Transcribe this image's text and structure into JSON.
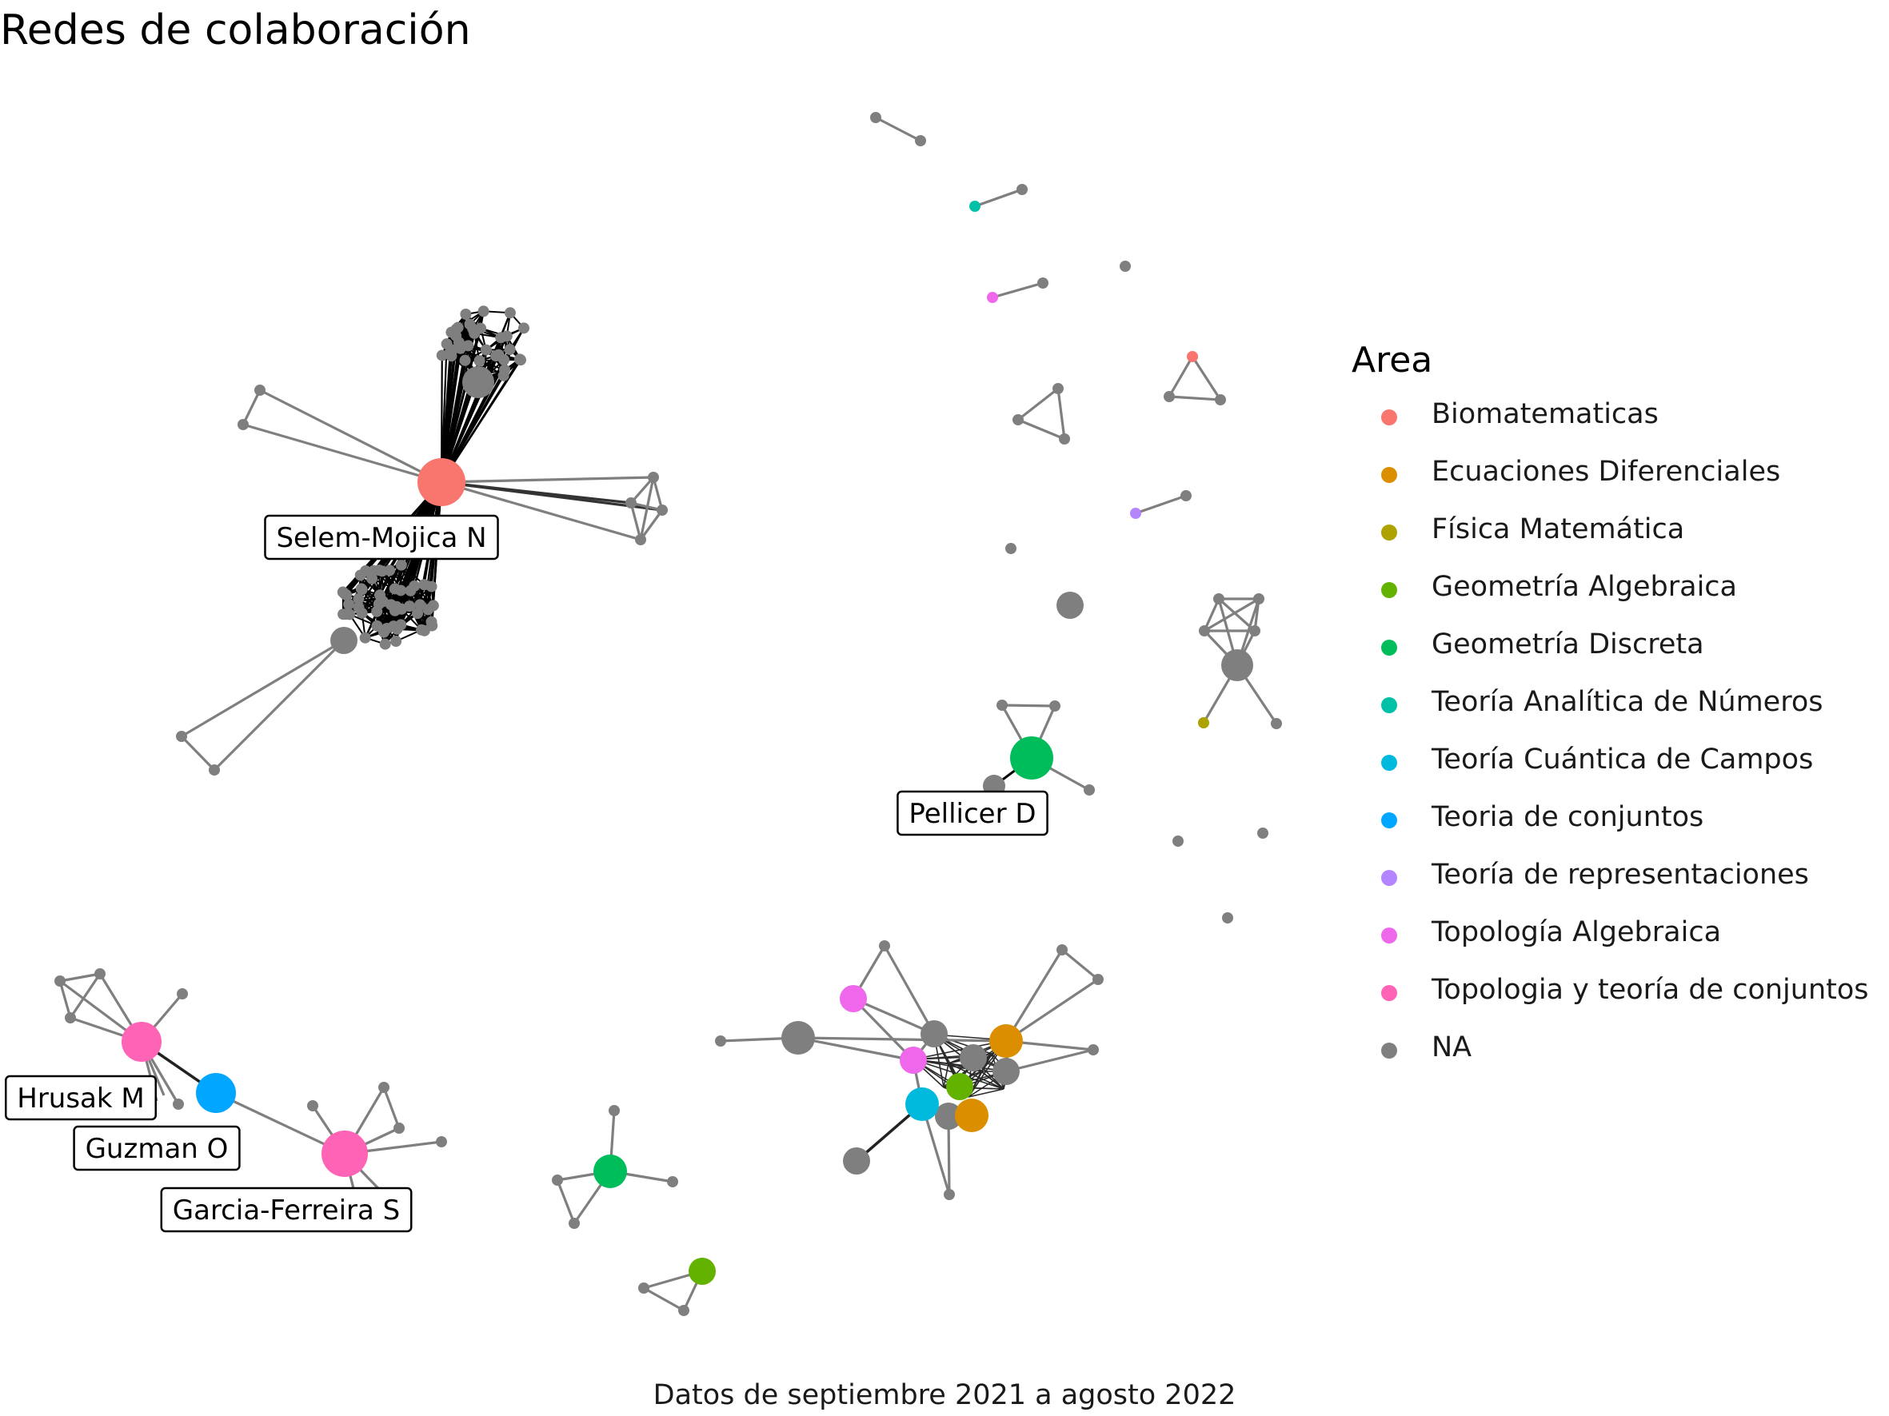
{
  "title": "Redes de colaboración",
  "caption": "Datos de septiembre 2021 a agosto 2022",
  "legend": {
    "title": "Area",
    "items": [
      {
        "label": "Biomatematicas",
        "color": "#F8766D"
      },
      {
        "label": "Ecuaciones Diferenciales",
        "color": "#DB8E00"
      },
      {
        "label": "Física Matemática",
        "color": "#AEA200"
      },
      {
        "label": "Geometría Algebraica",
        "color": "#64B200"
      },
      {
        "label": "Geometría Discreta",
        "color": "#00BD5C"
      },
      {
        "label": "Teoría Analítica de Números",
        "color": "#00C1A7"
      },
      {
        "label": "Teoría Cuántica de Campos",
        "color": "#00BADE"
      },
      {
        "label": "Teoria de conjuntos",
        "color": "#00A6FF"
      },
      {
        "label": "Teoría de representaciones",
        "color": "#B385FF"
      },
      {
        "label": "Topología Algebraica",
        "color": "#EF67EB"
      },
      {
        "label": "Topologia y teoría de conjuntos",
        "color": "#FF63B6"
      },
      {
        "label": "NA",
        "color": "#7F7F7F"
      }
    ]
  },
  "node_labels": {
    "selem": "Selem-Mojica N",
    "pellicer": "Pellicer D",
    "hrusak": "Hrusak M",
    "guzman": "Guzman O",
    "garcia": "Garcia-Ferreira S"
  }
}
